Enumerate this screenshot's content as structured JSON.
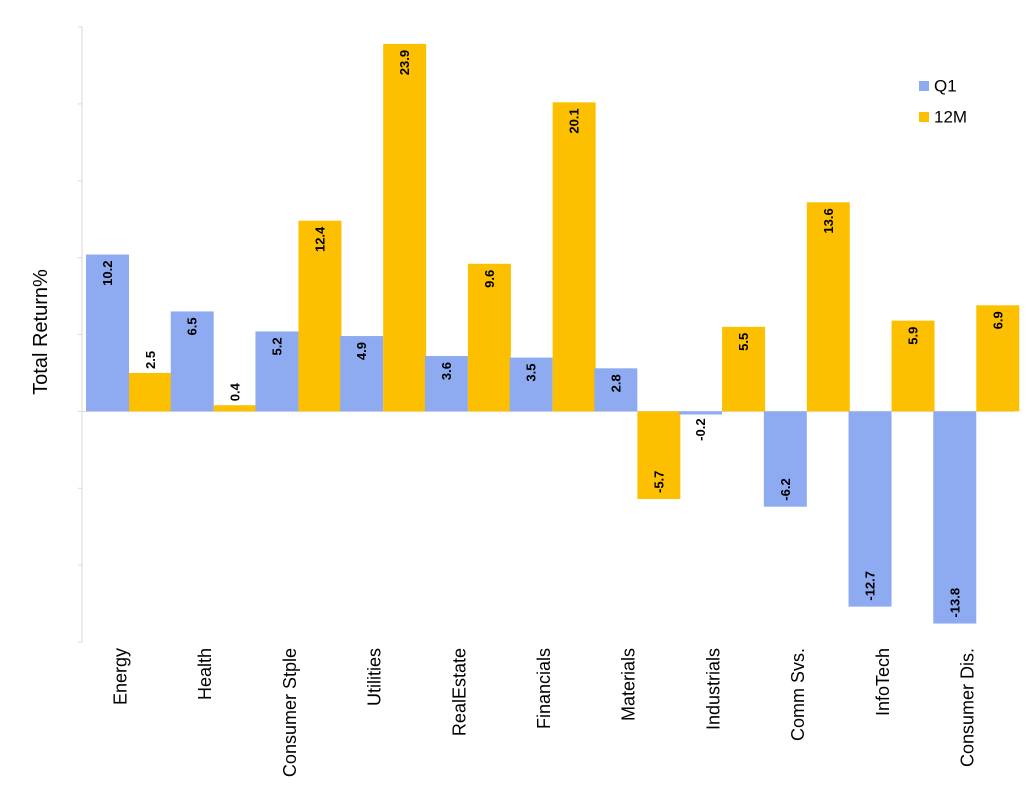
{
  "chart_data": {
    "type": "bar",
    "title": "",
    "xlabel": "",
    "ylabel": "Total Return%",
    "categories": [
      "Energy",
      "Health",
      "Consumer Stple",
      "Utilities",
      "RealEstate",
      "Financials",
      "Materials",
      "Industrials",
      "Comm Svs.",
      "InfoTech",
      "Consumer Dis."
    ],
    "series": [
      {
        "name": "Q1",
        "color": "#8eaaf0",
        "values": [
          10.2,
          6.5,
          5.2,
          4.9,
          3.6,
          3.5,
          2.8,
          -0.2,
          -6.2,
          -12.7,
          -13.8
        ]
      },
      {
        "name": "12M",
        "color": "#fdc000",
        "values": [
          2.5,
          0.4,
          12.4,
          23.9,
          9.6,
          20.1,
          -5.7,
          5.5,
          13.6,
          5.9,
          6.9
        ]
      }
    ],
    "ylim": [
      -15,
      25
    ],
    "grid": false,
    "legend": "top-right",
    "y_tick_labels_shown": false
  }
}
